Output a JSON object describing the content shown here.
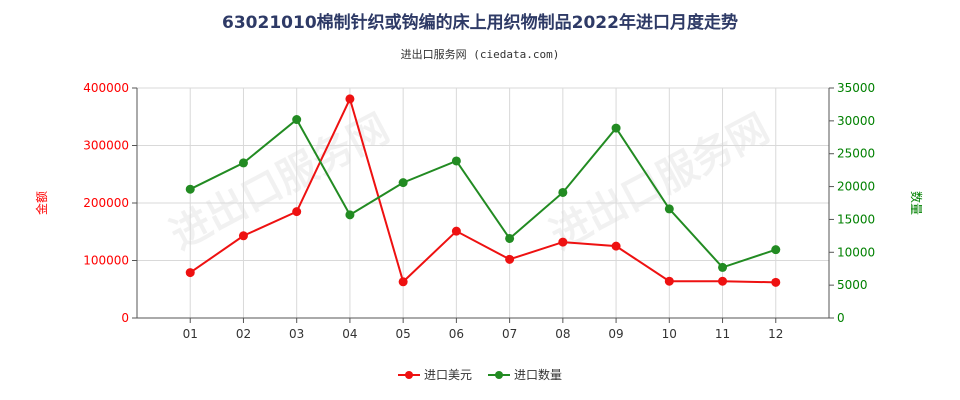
{
  "chart_data": {
    "type": "line",
    "title": "63021010棉制针织或钩编的床上用织物制品2022年进口月度走势",
    "subtitle": "进出口服务网 (ciedata.com)",
    "watermark": "进出口服务网",
    "categories": [
      "01",
      "02",
      "03",
      "04",
      "05",
      "06",
      "07",
      "08",
      "09",
      "10",
      "11",
      "12"
    ],
    "y_left": {
      "label": "金额",
      "min": 0,
      "max": 400000,
      "ticks": [
        0,
        100000,
        200000,
        300000,
        400000
      ],
      "color": "#ff0000"
    },
    "y_right": {
      "label": "数量",
      "min": 0,
      "max": 35000,
      "ticks": [
        0,
        5000,
        10000,
        15000,
        20000,
        25000,
        30000,
        35000
      ],
      "color": "#008000"
    },
    "series": [
      {
        "name": "进口美元",
        "axis": "left",
        "color": "#ee1111",
        "values": [
          79000,
          143000,
          185000,
          381000,
          63000,
          151000,
          102000,
          132000,
          125000,
          64000,
          64000,
          62000
        ]
      },
      {
        "name": "进口数量",
        "axis": "right",
        "color": "#228b22",
        "values": [
          19600,
          23600,
          30200,
          15700,
          20600,
          23900,
          12100,
          19100,
          28900,
          16600,
          7700,
          10400
        ]
      }
    ],
    "grid": true,
    "legend_position": "bottom"
  }
}
